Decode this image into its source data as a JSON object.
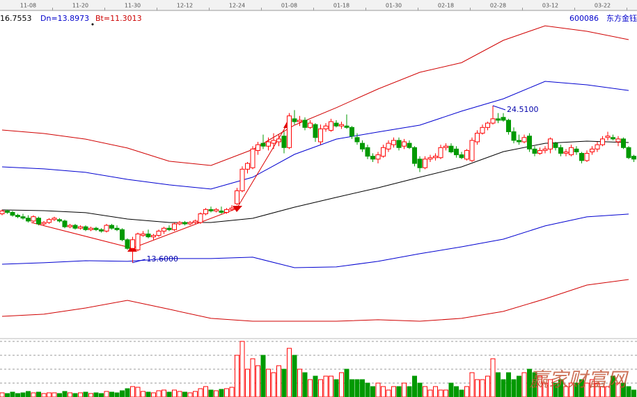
{
  "header": {
    "up": "16.7553",
    "dn": "Dn=13.8973",
    "bt": "Bt=11.3013",
    "code": "600086",
    "stock": "东方金钰"
  },
  "watermark": "赢家财富网",
  "chart_data": {
    "type": "candlestick",
    "categories": [
      null,
      null,
      null,
      null,
      null,
      "11-08",
      null,
      null,
      null,
      null,
      null,
      null,
      null,
      null,
      null,
      "11-20",
      null,
      null,
      null,
      null,
      null,
      null,
      null,
      null,
      null,
      "11-30",
      null,
      null,
      null,
      null,
      null,
      null,
      null,
      null,
      null,
      "12-12",
      null,
      null,
      null,
      null,
      null,
      null,
      null,
      null,
      null,
      "12-24",
      null,
      null,
      null,
      null,
      null,
      null,
      null,
      null,
      null,
      "01-08",
      null,
      null,
      null,
      null,
      null,
      null,
      null,
      null,
      null,
      "01-18",
      null,
      null,
      null,
      null,
      null,
      null,
      null,
      null,
      null,
      "01-30",
      null,
      null,
      null,
      null,
      null,
      null,
      null,
      null,
      null,
      "02-18",
      null,
      null,
      null,
      null,
      null,
      null,
      null,
      null,
      null,
      "02-28",
      null,
      null,
      null,
      null,
      null,
      null,
      null,
      null,
      null,
      "03-12",
      null,
      null,
      null,
      null,
      null,
      null,
      null,
      null,
      null,
      "03-22",
      null,
      null,
      null,
      null,
      null,
      null
    ],
    "ohlc": [
      [
        17.0,
        17.3,
        16.9,
        17.2
      ],
      [
        17.2,
        17.3,
        17.0,
        17.1
      ],
      [
        17.1,
        17.2,
        16.8,
        16.9
      ],
      [
        16.9,
        17.0,
        16.7,
        16.8
      ],
      [
        16.8,
        17.0,
        16.6,
        16.7
      ],
      [
        16.7,
        16.9,
        16.4,
        16.5
      ],
      [
        16.5,
        16.9,
        16.4,
        16.8
      ],
      [
        16.7,
        16.8,
        16.2,
        16.3
      ],
      [
        16.3,
        16.5,
        16.2,
        16.4
      ],
      [
        16.4,
        16.7,
        16.3,
        16.6
      ],
      [
        16.6,
        16.8,
        16.5,
        16.7
      ],
      [
        16.6,
        16.7,
        16.4,
        16.5
      ],
      [
        16.5,
        16.6,
        16.0,
        16.1
      ],
      [
        16.1,
        16.3,
        16.0,
        16.2
      ],
      [
        16.2,
        16.3,
        15.9,
        16.0
      ],
      [
        16.0,
        16.2,
        15.9,
        16.1
      ],
      [
        16.1,
        16.2,
        15.8,
        15.9
      ],
      [
        15.9,
        16.1,
        15.8,
        16.0
      ],
      [
        16.0,
        16.1,
        15.8,
        15.9
      ],
      [
        15.9,
        16.0,
        15.7,
        15.8
      ],
      [
        15.8,
        16.3,
        15.7,
        16.2
      ],
      [
        16.2,
        16.3,
        15.9,
        16.0
      ],
      [
        16.0,
        16.2,
        15.8,
        15.9
      ],
      [
        15.9,
        16.0,
        15.1,
        15.2
      ],
      [
        15.2,
        15.3,
        14.5,
        14.6
      ],
      [
        14.6,
        15.4,
        13.6,
        15.2
      ],
      [
        14.5,
        15.7,
        14.4,
        15.6
      ],
      [
        15.5,
        15.8,
        15.4,
        15.6
      ],
      [
        15.6,
        15.9,
        15.3,
        15.4
      ],
      [
        15.4,
        15.6,
        15.2,
        15.5
      ],
      [
        15.5,
        15.9,
        15.4,
        15.8
      ],
      [
        15.8,
        16.1,
        15.6,
        16.0
      ],
      [
        16.0,
        16.2,
        15.8,
        15.9
      ],
      [
        15.9,
        16.4,
        15.8,
        16.3
      ],
      [
        16.3,
        16.5,
        16.2,
        16.4
      ],
      [
        16.4,
        16.5,
        16.2,
        16.3
      ],
      [
        16.3,
        16.5,
        16.2,
        16.4
      ],
      [
        16.4,
        16.6,
        16.3,
        16.5
      ],
      [
        16.4,
        17.1,
        16.3,
        17.0
      ],
      [
        17.0,
        17.4,
        16.9,
        17.3
      ],
      [
        17.3,
        17.5,
        17.1,
        17.2
      ],
      [
        17.2,
        17.4,
        17.1,
        17.3
      ],
      [
        17.2,
        17.5,
        17.0,
        17.1
      ],
      [
        17.1,
        17.4,
        17.0,
        17.3
      ],
      [
        17.3,
        17.6,
        17.2,
        17.4
      ],
      [
        17.7,
        18.8,
        17.6,
        18.6
      ],
      [
        18.6,
        20.3,
        18.5,
        20.1
      ],
      [
        20.1,
        20.6,
        19.8,
        20.5
      ],
      [
        20.2,
        21.7,
        20.1,
        21.5
      ],
      [
        21.4,
        22.0,
        21.1,
        21.8
      ],
      [
        21.9,
        22.5,
        21.5,
        21.7
      ],
      [
        21.7,
        22.3,
        21.4,
        22.0
      ],
      [
        21.9,
        22.6,
        21.5,
        22.1
      ],
      [
        22.0,
        22.5,
        21.7,
        22.2
      ],
      [
        22.4,
        22.7,
        21.2,
        21.6
      ],
      [
        21.6,
        24.0,
        21.5,
        23.8
      ],
      [
        23.6,
        24.2,
        23.2,
        23.4
      ],
      [
        23.4,
        23.8,
        23.1,
        23.5
      ],
      [
        23.5,
        23.7,
        22.8,
        23.0
      ],
      [
        23.0,
        23.5,
        22.9,
        23.3
      ],
      [
        23.2,
        23.3,
        22.0,
        22.3
      ],
      [
        22.0,
        23.2,
        21.8,
        22.9
      ],
      [
        22.9,
        23.3,
        22.7,
        23.1
      ],
      [
        22.8,
        23.6,
        22.7,
        23.4
      ],
      [
        23.3,
        23.5,
        23.0,
        23.1
      ],
      [
        23.1,
        23.4,
        22.9,
        23.2
      ],
      [
        23.1,
        23.9,
        22.9,
        23.0
      ],
      [
        23.0,
        23.1,
        22.2,
        22.4
      ],
      [
        22.3,
        22.6,
        21.8,
        22.0
      ],
      [
        21.9,
        22.1,
        21.3,
        21.5
      ],
      [
        21.6,
        21.8,
        20.8,
        21.0
      ],
      [
        21.0,
        21.2,
        20.6,
        20.8
      ],
      [
        20.8,
        21.3,
        20.5,
        21.1
      ],
      [
        21.0,
        21.8,
        20.9,
        21.6
      ],
      [
        21.5,
        22.1,
        21.3,
        21.9
      ],
      [
        21.8,
        22.3,
        21.6,
        22.1
      ],
      [
        22.1,
        22.3,
        21.4,
        21.6
      ],
      [
        21.7,
        22.2,
        21.5,
        22.0
      ],
      [
        21.9,
        22.1,
        21.5,
        21.6
      ],
      [
        21.6,
        21.7,
        20.3,
        20.5
      ],
      [
        20.8,
        21.0,
        19.9,
        20.2
      ],
      [
        20.2,
        21.0,
        20.1,
        20.8
      ],
      [
        20.8,
        21.1,
        20.6,
        20.9
      ],
      [
        20.9,
        21.2,
        20.7,
        21.0
      ],
      [
        20.9,
        21.8,
        20.8,
        21.6
      ],
      [
        21.6,
        21.9,
        21.4,
        21.7
      ],
      [
        21.7,
        21.9,
        21.2,
        21.3
      ],
      [
        21.5,
        21.7,
        20.9,
        21.1
      ],
      [
        21.1,
        21.3,
        20.8,
        20.9
      ],
      [
        20.8,
        21.5,
        20.7,
        21.4
      ],
      [
        20.7,
        22.3,
        20.6,
        22.1
      ],
      [
        22.0,
        22.8,
        21.8,
        22.6
      ],
      [
        22.6,
        23.2,
        22.5,
        23.0
      ],
      [
        23.0,
        23.4,
        22.8,
        23.3
      ],
      [
        23.3,
        24.51,
        23.2,
        23.6
      ],
      [
        23.6,
        24.0,
        23.3,
        23.5
      ],
      [
        23.7,
        24.0,
        23.4,
        23.5
      ],
      [
        23.5,
        23.6,
        22.5,
        22.7
      ],
      [
        22.7,
        23.0,
        21.9,
        22.1
      ],
      [
        22.1,
        22.5,
        21.8,
        22.0
      ],
      [
        22.0,
        22.5,
        21.9,
        22.3
      ],
      [
        22.4,
        22.6,
        21.3,
        21.5
      ],
      [
        21.5,
        21.7,
        21.0,
        21.2
      ],
      [
        21.2,
        21.6,
        21.1,
        21.4
      ],
      [
        21.4,
        21.7,
        21.2,
        21.5
      ],
      [
        21.5,
        22.3,
        21.2,
        22.2
      ],
      [
        21.9,
        22.0,
        21.4,
        21.6
      ],
      [
        21.6,
        21.8,
        21.0,
        21.2
      ],
      [
        21.2,
        21.5,
        21.0,
        21.3
      ],
      [
        21.1,
        21.8,
        21.0,
        21.6
      ],
      [
        21.5,
        21.7,
        21.1,
        21.3
      ],
      [
        21.2,
        21.3,
        20.5,
        20.7
      ],
      [
        20.7,
        21.4,
        20.6,
        21.2
      ],
      [
        21.3,
        21.7,
        21.1,
        21.5
      ],
      [
        21.5,
        22.0,
        21.3,
        21.8
      ],
      [
        21.8,
        22.4,
        21.7,
        22.2
      ],
      [
        22.3,
        22.7,
        22.1,
        22.4
      ],
      [
        22.3,
        22.5,
        22.1,
        22.2
      ],
      [
        22.0,
        22.4,
        21.7,
        22.2
      ],
      [
        22.2,
        22.3,
        21.5,
        21.6
      ],
      [
        21.6,
        21.7,
        20.8,
        20.9
      ],
      [
        21.0,
        21.1,
        20.6,
        20.8
      ]
    ],
    "volume": [
      6,
      5,
      7,
      5,
      6,
      8,
      6,
      7,
      5,
      6,
      6,
      5,
      8,
      6,
      5,
      6,
      7,
      5,
      6,
      5,
      8,
      7,
      6,
      9,
      12,
      15,
      14,
      8,
      7,
      6,
      9,
      10,
      7,
      10,
      8,
      7,
      6,
      8,
      12,
      15,
      10,
      9,
      11,
      12,
      14,
      60,
      80,
      40,
      55,
      45,
      60,
      40,
      35,
      45,
      40,
      70,
      60,
      40,
      35,
      25,
      30,
      25,
      30,
      30,
      25,
      35,
      40,
      25,
      25,
      25,
      20,
      15,
      20,
      15,
      10,
      15,
      15,
      20,
      15,
      30,
      20,
      15,
      10,
      15,
      10,
      10,
      20,
      15,
      10,
      15,
      35,
      25,
      25,
      30,
      55,
      35,
      25,
      35,
      25,
      30,
      35,
      40,
      35,
      30,
      20,
      25,
      20,
      25,
      15,
      20,
      20,
      25,
      20,
      25,
      20,
      15,
      15,
      30,
      20,
      20,
      15,
      10
    ],
    "ylim": [
      8.43,
      31.03
    ],
    "volume_lim": [
      0,
      83
    ],
    "colors": {
      "up": "#ff0000",
      "down": "#009900"
    },
    "bands": {
      "x": [
        0,
        8,
        16,
        24,
        32,
        40,
        48,
        56,
        64,
        72,
        80,
        88,
        96,
        104,
        112,
        120
      ],
      "series": [
        {
          "color": "#d00000",
          "values": [
            22.82,
            22.58,
            22.19,
            21.57,
            20.65,
            20.36,
            21.47,
            23.16,
            24.37,
            25.67,
            26.83,
            27.5,
            29.05,
            30.06,
            29.68,
            29.1
          ]
        },
        {
          "color": "#0000d0",
          "values": [
            20.26,
            20.12,
            19.88,
            19.39,
            19.01,
            18.72,
            19.54,
            21.13,
            22.19,
            22.68,
            23.16,
            24.13,
            24.99,
            26.2,
            25.96,
            25.57
          ]
        },
        {
          "color": "#000000",
          "values": [
            17.27,
            17.22,
            17.08,
            16.64,
            16.4,
            16.4,
            16.69,
            17.46,
            18.14,
            18.81,
            19.54,
            20.26,
            21.32,
            21.9,
            22.05,
            21.95
          ]
        },
        {
          "color": "#0000d0",
          "values": [
            13.5,
            13.6,
            13.74,
            13.7,
            13.89,
            13.89,
            13.99,
            13.26,
            13.31,
            13.7,
            14.23,
            14.71,
            15.24,
            16.16,
            16.79,
            16.98
          ]
        },
        {
          "color": "#d00000",
          "values": [
            9.88,
            10.03,
            10.46,
            10.99,
            10.37,
            9.74,
            9.54,
            9.54,
            9.54,
            9.64,
            9.54,
            9.74,
            10.22,
            11.09,
            12.05,
            12.44
          ]
        }
      ]
    },
    "annotations": [
      {
        "index": 25,
        "value": 13.6,
        "label": "13.6000"
      },
      {
        "index": 94,
        "value": 24.51,
        "label": "24.5100"
      }
    ]
  }
}
